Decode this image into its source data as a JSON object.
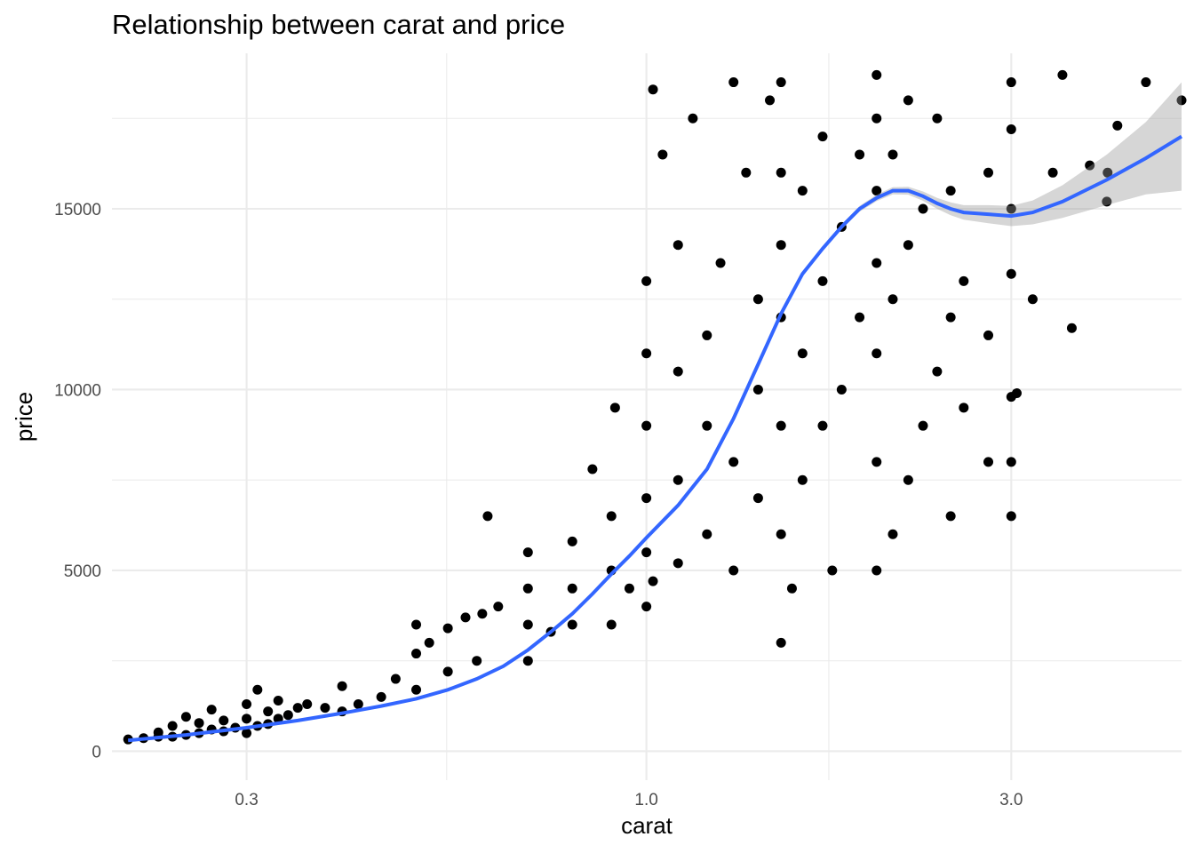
{
  "chart_data": {
    "type": "scatter",
    "title": "Relationship between carat and price",
    "xlabel": "carat",
    "ylabel": "price",
    "x_scale": "log10",
    "xlim": [
      0.2,
      5.01
    ],
    "ylim": [
      -800,
      19300
    ],
    "x_ticks": [
      0.3,
      1.0,
      3.0
    ],
    "x_tick_labels": [
      "0.3",
      "1.0",
      "3.0"
    ],
    "x_minor_ticks": [
      0.548,
      1.732
    ],
    "y_ticks": [
      0,
      5000,
      10000,
      15000
    ],
    "y_tick_labels": [
      "0",
      "5000",
      "10000",
      "15000"
    ],
    "y_minor_ticks": [
      2500,
      7500,
      12500,
      17500
    ],
    "grid": true,
    "legend": "none",
    "colors": {
      "points": "#000000",
      "smooth": "#3366FF",
      "ribbon": "#999999"
    },
    "point_data_note": "approximate representative sample of the dense scatter; the original shows the full diamonds dataset (about 53,940 points)",
    "points": [
      [
        0.21,
        326
      ],
      [
        0.22,
        360
      ],
      [
        0.23,
        402
      ],
      [
        0.23,
        520
      ],
      [
        0.24,
        400
      ],
      [
        0.24,
        700
      ],
      [
        0.25,
        450
      ],
      [
        0.25,
        950
      ],
      [
        0.26,
        500
      ],
      [
        0.26,
        780
      ],
      [
        0.27,
        600
      ],
      [
        0.27,
        1150
      ],
      [
        0.28,
        550
      ],
      [
        0.28,
        850
      ],
      [
        0.29,
        650
      ],
      [
        0.3,
        500
      ],
      [
        0.3,
        900
      ],
      [
        0.3,
        1300
      ],
      [
        0.31,
        700
      ],
      [
        0.31,
        1700
      ],
      [
        0.32,
        750
      ],
      [
        0.32,
        1100
      ],
      [
        0.33,
        900
      ],
      [
        0.33,
        1400
      ],
      [
        0.34,
        1000
      ],
      [
        0.35,
        1200
      ],
      [
        0.36,
        1300
      ],
      [
        0.38,
        1200
      ],
      [
        0.4,
        1100
      ],
      [
        0.4,
        1800
      ],
      [
        0.42,
        1300
      ],
      [
        0.45,
        1500
      ],
      [
        0.47,
        2000
      ],
      [
        0.5,
        1700
      ],
      [
        0.5,
        2700
      ],
      [
        0.5,
        3500
      ],
      [
        0.52,
        3000
      ],
      [
        0.55,
        2200
      ],
      [
        0.55,
        3400
      ],
      [
        0.58,
        3700
      ],
      [
        0.6,
        2500
      ],
      [
        0.61,
        3800
      ],
      [
        0.62,
        6500
      ],
      [
        0.64,
        4000
      ],
      [
        0.7,
        2500
      ],
      [
        0.7,
        3500
      ],
      [
        0.7,
        4500
      ],
      [
        0.7,
        5500
      ],
      [
        0.75,
        3300
      ],
      [
        0.8,
        3500
      ],
      [
        0.8,
        4500
      ],
      [
        0.8,
        5800
      ],
      [
        0.85,
        7800
      ],
      [
        0.9,
        3500
      ],
      [
        0.9,
        5000
      ],
      [
        0.9,
        6500
      ],
      [
        0.91,
        9500
      ],
      [
        0.95,
        4500
      ],
      [
        1.0,
        4000
      ],
      [
        1.0,
        5500
      ],
      [
        1.0,
        7000
      ],
      [
        1.0,
        9000
      ],
      [
        1.0,
        11000
      ],
      [
        1.0,
        13000
      ],
      [
        1.02,
        4700
      ],
      [
        1.02,
        18300
      ],
      [
        1.05,
        16500
      ],
      [
        1.1,
        5200
      ],
      [
        1.1,
        7500
      ],
      [
        1.1,
        10500
      ],
      [
        1.1,
        14000
      ],
      [
        1.15,
        17500
      ],
      [
        1.2,
        6000
      ],
      [
        1.2,
        9000
      ],
      [
        1.2,
        11500
      ],
      [
        1.25,
        13500
      ],
      [
        1.3,
        18500
      ],
      [
        1.3,
        5000
      ],
      [
        1.3,
        8000
      ],
      [
        1.35,
        16000
      ],
      [
        1.4,
        7000
      ],
      [
        1.4,
        10000
      ],
      [
        1.4,
        12500
      ],
      [
        1.45,
        18000
      ],
      [
        1.5,
        3000
      ],
      [
        1.5,
        6000
      ],
      [
        1.5,
        9000
      ],
      [
        1.5,
        12000
      ],
      [
        1.5,
        14000
      ],
      [
        1.5,
        16000
      ],
      [
        1.5,
        18500
      ],
      [
        1.55,
        4500
      ],
      [
        1.6,
        7500
      ],
      [
        1.6,
        11000
      ],
      [
        1.6,
        15500
      ],
      [
        1.7,
        9000
      ],
      [
        1.7,
        13000
      ],
      [
        1.7,
        17000
      ],
      [
        1.75,
        5000
      ],
      [
        1.8,
        10000
      ],
      [
        1.8,
        14500
      ],
      [
        1.9,
        12000
      ],
      [
        1.9,
        16500
      ],
      [
        2.0,
        5000
      ],
      [
        2.0,
        8000
      ],
      [
        2.0,
        11000
      ],
      [
        2.0,
        13500
      ],
      [
        2.0,
        15500
      ],
      [
        2.0,
        17500
      ],
      [
        2.0,
        18700
      ],
      [
        2.1,
        6000
      ],
      [
        2.1,
        12500
      ],
      [
        2.1,
        16500
      ],
      [
        2.2,
        7500
      ],
      [
        2.2,
        14000
      ],
      [
        2.2,
        18000
      ],
      [
        2.3,
        9000
      ],
      [
        2.3,
        15000
      ],
      [
        2.4,
        10500
      ],
      [
        2.4,
        17500
      ],
      [
        2.5,
        6500
      ],
      [
        2.5,
        12000
      ],
      [
        2.5,
        15500
      ],
      [
        2.6,
        9500
      ],
      [
        2.6,
        13000
      ],
      [
        2.8,
        8000
      ],
      [
        2.8,
        11500
      ],
      [
        2.8,
        16000
      ],
      [
        3.0,
        6500
      ],
      [
        3.0,
        8000
      ],
      [
        3.0,
        9800
      ],
      [
        3.0,
        13200
      ],
      [
        3.0,
        15000
      ],
      [
        3.0,
        17200
      ],
      [
        3.0,
        18500
      ],
      [
        3.05,
        9900
      ],
      [
        3.2,
        12500
      ],
      [
        3.4,
        16000
      ],
      [
        3.5,
        18700
      ],
      [
        3.6,
        11700
      ],
      [
        3.8,
        16200
      ],
      [
        4.0,
        15200
      ],
      [
        4.01,
        16000
      ],
      [
        4.13,
        17300
      ],
      [
        4.5,
        18500
      ],
      [
        5.01,
        18000
      ]
    ],
    "smooth": {
      "x": [
        0.21,
        0.25,
        0.3,
        0.35,
        0.4,
        0.45,
        0.5,
        0.55,
        0.6,
        0.65,
        0.7,
        0.75,
        0.8,
        0.85,
        0.9,
        0.95,
        1.0,
        1.1,
        1.2,
        1.3,
        1.4,
        1.5,
        1.6,
        1.7,
        1.8,
        1.9,
        2.0,
        2.1,
        2.2,
        2.3,
        2.4,
        2.5,
        2.6,
        2.8,
        3.0,
        3.2,
        3.5,
        4.0,
        4.5,
        5.01
      ],
      "y": [
        300,
        450,
        650,
        850,
        1050,
        1250,
        1450,
        1700,
        2000,
        2350,
        2800,
        3300,
        3800,
        4350,
        4900,
        5400,
        5900,
        6800,
        7800,
        9200,
        10700,
        12100,
        13200,
        13900,
        14500,
        15000,
        15300,
        15500,
        15500,
        15350,
        15150,
        15000,
        14900,
        14850,
        14800,
        14900,
        15200,
        15800,
        16400,
        17000
      ],
      "ci_half_width": [
        30,
        30,
        30,
        30,
        30,
        30,
        30,
        30,
        30,
        30,
        30,
        30,
        30,
        30,
        30,
        30,
        30,
        40,
        40,
        50,
        50,
        60,
        60,
        70,
        70,
        80,
        90,
        100,
        110,
        130,
        150,
        180,
        200,
        250,
        280,
        330,
        450,
        700,
        1000,
        1500
      ]
    }
  }
}
